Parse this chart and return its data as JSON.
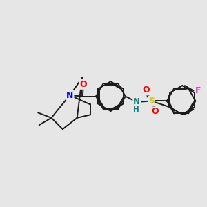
{
  "bg_color": "#e6e6e6",
  "atom_colors": {
    "N": "#0000ee",
    "O": "#ff0000",
    "F": "#cc44cc",
    "S": "#cccc00",
    "NH_N": "#008888",
    "NH_H": "#008888",
    "C": "#1a1a1a"
  },
  "bond_color": "#1a1a1a",
  "bond_width": 1.4
}
